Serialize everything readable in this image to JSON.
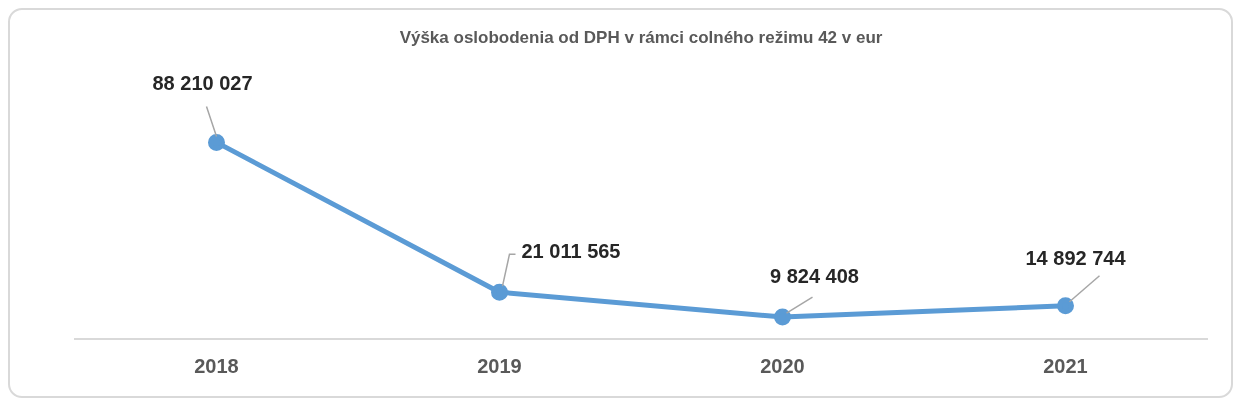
{
  "chart_data": {
    "type": "line",
    "title": "Výška oslobodenia od DPH v rámci colného režimu 42 v eur",
    "categories": [
      "2018",
      "2019",
      "2020",
      "2021"
    ],
    "series": [
      {
        "color": "#5b9bd5",
        "values": [
          88210027,
          21011565,
          9824408,
          14892744
        ]
      }
    ],
    "data_labels": true,
    "marker": "circle",
    "grid": false,
    "legend": false,
    "tick_labels": "x"
  }
}
